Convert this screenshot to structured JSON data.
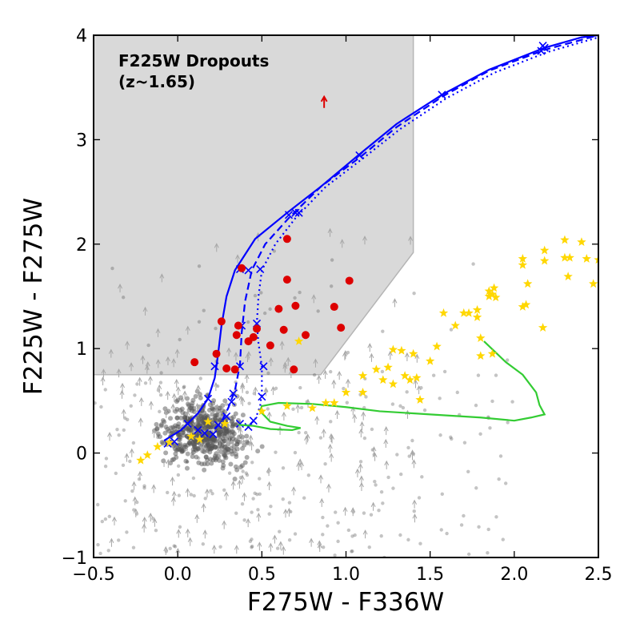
{
  "chart_data": {
    "type": "scatter",
    "xlabel": "F275W - F336W",
    "ylabel": "F225W - F275W",
    "xlim": [
      -0.5,
      2.5
    ],
    "ylim": [
      -1,
      4
    ],
    "xticks": [
      -0.5,
      0.0,
      0.5,
      1.0,
      1.5,
      2.0,
      2.5
    ],
    "xtick_labels": [
      "−0.5",
      "0.0",
      "0.5",
      "1.0",
      "1.5",
      "2.0",
      "2.5"
    ],
    "yticks": [
      -1,
      0,
      1,
      2,
      3,
      4
    ],
    "ytick_labels": [
      "−1",
      "0",
      "1",
      "2",
      "3",
      "4"
    ],
    "grid": false,
    "annotation": {
      "line1": "F225W Dropouts",
      "line2": "(z~1.65)",
      "position": "top-left"
    },
    "selection_region": {
      "color": "#d9d9d9",
      "vertices": [
        [
          -0.5,
          0.75
        ],
        [
          0.85,
          0.75
        ],
        [
          1.4,
          1.92
        ],
        [
          1.4,
          4.0
        ],
        [
          -0.5,
          4.0
        ]
      ]
    },
    "dropouts": {
      "color": "#dd0000",
      "points": [
        [
          0.1,
          0.87
        ],
        [
          0.26,
          1.26
        ],
        [
          0.23,
          0.95
        ],
        [
          0.29,
          0.81
        ],
        [
          0.34,
          0.8
        ],
        [
          0.35,
          1.13
        ],
        [
          0.36,
          1.22
        ],
        [
          0.38,
          1.77
        ],
        [
          0.42,
          1.07
        ],
        [
          0.45,
          1.11
        ],
        [
          0.47,
          1.19
        ],
        [
          0.55,
          1.03
        ],
        [
          0.6,
          1.38
        ],
        [
          0.63,
          1.18
        ],
        [
          0.65,
          1.66
        ],
        [
          0.65,
          2.05
        ],
        [
          0.69,
          0.8
        ],
        [
          0.7,
          1.41
        ],
        [
          0.76,
          1.13
        ],
        [
          0.93,
          1.4
        ],
        [
          0.97,
          1.2
        ],
        [
          1.02,
          1.65
        ]
      ],
      "upper_limit": [
        0.87,
        3.35
      ]
    },
    "stars": {
      "color": "#ffd700",
      "points": [
        [
          -0.22,
          -0.07
        ],
        [
          -0.18,
          -0.02
        ],
        [
          -0.12,
          0.06
        ],
        [
          -0.05,
          0.1
        ],
        [
          0.08,
          0.16
        ],
        [
          0.13,
          0.13
        ],
        [
          0.18,
          0.3
        ],
        [
          0.28,
          0.28
        ],
        [
          0.5,
          0.4
        ],
        [
          0.65,
          0.45
        ],
        [
          0.72,
          1.07
        ],
        [
          0.8,
          0.43
        ],
        [
          0.88,
          0.48
        ],
        [
          0.93,
          0.48
        ],
        [
          1.0,
          0.58
        ],
        [
          1.1,
          0.58
        ],
        [
          1.1,
          0.74
        ],
        [
          1.18,
          0.8
        ],
        [
          1.22,
          0.7
        ],
        [
          1.25,
          0.82
        ],
        [
          1.28,
          0.66
        ],
        [
          1.28,
          0.99
        ],
        [
          1.33,
          0.98
        ],
        [
          1.35,
          0.74
        ],
        [
          1.38,
          0.7
        ],
        [
          1.4,
          0.95
        ],
        [
          1.42,
          0.72
        ],
        [
          1.44,
          0.51
        ],
        [
          1.5,
          0.88
        ],
        [
          1.54,
          1.02
        ],
        [
          1.58,
          1.34
        ],
        [
          1.65,
          1.22
        ],
        [
          1.7,
          1.34
        ],
        [
          1.73,
          1.34
        ],
        [
          1.78,
          1.3
        ],
        [
          1.78,
          1.37
        ],
        [
          1.8,
          0.93
        ],
        [
          1.8,
          1.1
        ],
        [
          1.85,
          1.5
        ],
        [
          1.85,
          1.55
        ],
        [
          1.87,
          0.95
        ],
        [
          1.87,
          1.52
        ],
        [
          1.88,
          1.58
        ],
        [
          1.89,
          1.49
        ],
        [
          2.05,
          1.8
        ],
        [
          2.05,
          1.86
        ],
        [
          2.05,
          1.4
        ],
        [
          2.07,
          1.42
        ],
        [
          2.08,
          1.62
        ],
        [
          2.17,
          1.2
        ],
        [
          2.18,
          1.84
        ],
        [
          2.18,
          1.94
        ],
        [
          2.3,
          2.04
        ],
        [
          2.3,
          1.87
        ],
        [
          2.32,
          1.69
        ],
        [
          2.33,
          1.87
        ],
        [
          2.4,
          2.02
        ],
        [
          2.43,
          1.86
        ],
        [
          2.47,
          1.62
        ],
        [
          2.5,
          1.85
        ]
      ]
    },
    "tracks": [
      {
        "color": "#0000ff",
        "style": "solid",
        "points": [
          [
            -0.08,
            0.12
          ],
          [
            0.02,
            0.22
          ],
          [
            0.12,
            0.38
          ],
          [
            0.18,
            0.52
          ],
          [
            0.22,
            0.72
          ],
          [
            0.24,
            0.95
          ],
          [
            0.26,
            1.22
          ],
          [
            0.29,
            1.5
          ],
          [
            0.34,
            1.75
          ],
          [
            0.46,
            2.05
          ],
          [
            0.65,
            2.3
          ],
          [
            0.85,
            2.55
          ],
          [
            1.08,
            2.86
          ],
          [
            1.3,
            3.15
          ],
          [
            1.57,
            3.43
          ],
          [
            1.85,
            3.67
          ],
          [
            2.18,
            3.88
          ],
          [
            2.4,
            3.98
          ],
          [
            2.5,
            4.0
          ]
        ],
        "markers": [
          [
            -0.06,
            0.09
          ],
          [
            -0.02,
            0.11
          ],
          [
            0.06,
            0.28
          ],
          [
            0.12,
            0.22
          ],
          [
            0.18,
            0.52
          ],
          [
            0.16,
            0.19
          ],
          [
            0.21,
            0.18
          ],
          [
            0.22,
            0.83
          ],
          [
            0.37,
            1.76
          ],
          [
            0.66,
            2.28
          ],
          [
            0.7,
            2.3
          ],
          [
            1.08,
            2.85
          ],
          [
            1.57,
            3.43
          ],
          [
            2.18,
            3.88
          ]
        ]
      },
      {
        "color": "#0000ff",
        "style": "dashed",
        "points": [
          [
            0.22,
            0.23
          ],
          [
            0.26,
            0.3
          ],
          [
            0.3,
            0.43
          ],
          [
            0.34,
            0.6
          ],
          [
            0.37,
            0.85
          ],
          [
            0.38,
            1.15
          ],
          [
            0.4,
            1.45
          ],
          [
            0.44,
            1.75
          ],
          [
            0.52,
            2.0
          ],
          [
            0.66,
            2.25
          ],
          [
            0.85,
            2.55
          ],
          [
            1.09,
            2.84
          ],
          [
            1.3,
            3.12
          ],
          [
            1.58,
            3.42
          ],
          [
            1.85,
            3.66
          ],
          [
            2.18,
            3.86
          ],
          [
            2.5,
            4.0
          ]
        ],
        "markers": [
          [
            0.24,
            0.27
          ],
          [
            0.29,
            0.35
          ],
          [
            0.32,
            0.49
          ],
          [
            0.33,
            0.57
          ],
          [
            0.37,
            0.83
          ],
          [
            0.38,
            1.22
          ],
          [
            0.42,
            1.75
          ],
          [
            0.72,
            2.3
          ],
          [
            2.16,
            3.85
          ]
        ]
      },
      {
        "color": "#0000ff",
        "style": "dotted",
        "points": [
          [
            0.42,
            0.26
          ],
          [
            0.46,
            0.32
          ],
          [
            0.49,
            0.45
          ],
          [
            0.5,
            0.6
          ],
          [
            0.5,
            0.83
          ],
          [
            0.48,
            1.05
          ],
          [
            0.47,
            1.24
          ],
          [
            0.48,
            1.5
          ],
          [
            0.5,
            1.75
          ],
          [
            0.58,
            2.0
          ],
          [
            0.7,
            2.25
          ],
          [
            0.88,
            2.55
          ],
          [
            1.1,
            2.82
          ],
          [
            1.32,
            3.1
          ],
          [
            1.6,
            3.4
          ],
          [
            1.88,
            3.64
          ],
          [
            2.2,
            3.84
          ],
          [
            2.5,
            3.98
          ]
        ],
        "markers": [
          [
            0.37,
            0.28
          ],
          [
            0.42,
            0.25
          ],
          [
            0.45,
            0.31
          ],
          [
            0.5,
            0.54
          ],
          [
            0.51,
            0.83
          ],
          [
            0.47,
            1.24
          ],
          [
            0.49,
            1.76
          ],
          [
            2.17,
            3.9
          ]
        ]
      },
      {
        "color": "#33cc33",
        "style": "solid",
        "points": [
          [
            1.82,
            1.07
          ],
          [
            1.95,
            0.87
          ],
          [
            2.05,
            0.75
          ],
          [
            2.13,
            0.58
          ],
          [
            2.15,
            0.46
          ],
          [
            2.18,
            0.37
          ],
          [
            2.1,
            0.34
          ],
          [
            2.0,
            0.31
          ],
          [
            1.8,
            0.34
          ],
          [
            1.5,
            0.37
          ],
          [
            1.2,
            0.4
          ],
          [
            1.0,
            0.44
          ],
          [
            0.8,
            0.47
          ],
          [
            0.6,
            0.48
          ],
          [
            0.5,
            0.45
          ],
          [
            0.49,
            0.4
          ],
          [
            0.55,
            0.3
          ],
          [
            0.65,
            0.26
          ],
          [
            0.73,
            0.24
          ],
          [
            0.68,
            0.22
          ],
          [
            0.55,
            0.23
          ],
          [
            0.45,
            0.26
          ],
          [
            0.36,
            0.27
          ]
        ]
      }
    ],
    "background_galaxies": {
      "color": "#555555",
      "detections": "gray points",
      "upper_limits": "gray arrows"
    }
  }
}
